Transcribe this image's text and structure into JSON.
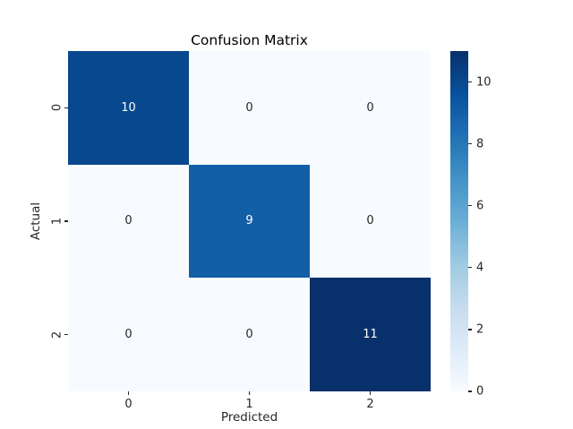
{
  "chart_data": {
    "type": "heatmap",
    "title": "Confusion Matrix",
    "xlabel": "Predicted",
    "ylabel": "Actual",
    "x_ticklabels": [
      "0",
      "1",
      "2"
    ],
    "y_ticklabels": [
      "0",
      "1",
      "2"
    ],
    "matrix": [
      [
        10,
        0,
        0
      ],
      [
        0,
        9,
        0
      ],
      [
        0,
        0,
        11
      ]
    ],
    "vmin": 0,
    "vmax": 11,
    "colormap": "Blues",
    "legend_position": "right-colorbar",
    "grid": false,
    "colorbar_ticks": [
      "0",
      "2",
      "4",
      "6",
      "8",
      "10"
    ],
    "colorbar_tick_values": [
      0,
      2,
      4,
      6,
      8,
      10
    ],
    "colormap_stops": [
      "#f7fbff",
      "#deebf7",
      "#c6dbef",
      "#9ecae1",
      "#6baed6",
      "#4292c6",
      "#2171b5",
      "#08519c",
      "#08306b"
    ],
    "cell_colors": [
      [
        "#08488f",
        "#f7fbff",
        "#f7fbff"
      ],
      [
        "#f7fbff",
        "#135fa7",
        "#f7fbff"
      ],
      [
        "#f7fbff",
        "#f7fbff",
        "#08306b"
      ]
    ],
    "cell_text_colors": [
      [
        "#ffffff",
        "#262626",
        "#262626"
      ],
      [
        "#262626",
        "#ffffff",
        "#262626"
      ],
      [
        "#262626",
        "#262626",
        "#ffffff"
      ]
    ]
  },
  "colors": {
    "background": "#ffffff",
    "title_text": "#000000",
    "axis_text": "#262626"
  }
}
